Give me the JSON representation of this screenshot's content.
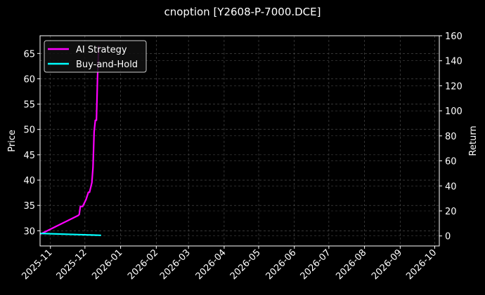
{
  "title": "cnoption [Y2608-P-7000.DCE]",
  "chart_data": {
    "type": "line",
    "title": "cnoption [Y2608-P-7000.DCE]",
    "xlabel": "",
    "ylabel": "Price",
    "ylabel_right": "Return",
    "x_ticks": [
      "2025-11",
      "2025-12",
      "2026-01",
      "2026-02",
      "2026-03",
      "2026-04",
      "2026-05",
      "2026-06",
      "2026-07",
      "2026-08",
      "2026-09",
      "2026-10"
    ],
    "y_ticks_left": [
      30,
      35,
      40,
      45,
      50,
      55,
      60,
      65
    ],
    "y_ticks_right": [
      0,
      20,
      40,
      60,
      80,
      100,
      120,
      140,
      160
    ],
    "ylim_left": [
      27.0,
      68.5
    ],
    "ylim_right": [
      -8,
      160
    ],
    "grid": true,
    "legend_position": "upper left",
    "series": [
      {
        "name": "AI Strategy",
        "color": "#ff00ff",
        "axis": "left",
        "x": [
          "2025-10-23",
          "2025-11-25",
          "2025-11-26",
          "2025-11-27",
          "2025-11-29",
          "2025-12-02",
          "2025-12-04",
          "2025-12-05",
          "2025-12-07",
          "2025-12-08",
          "2025-12-09",
          "2025-12-10",
          "2025-12-11",
          "2025-12-12",
          "2025-12-13"
        ],
        "values": [
          29.3,
          33.0,
          33.2,
          34.8,
          34.8,
          36.2,
          37.6,
          37.6,
          39.5,
          42.5,
          49.5,
          51.8,
          51.8,
          60.5,
          66.5
        ]
      },
      {
        "name": "Buy-and-Hold",
        "color": "#00ffff",
        "axis": "right",
        "x": [
          "2025-10-23",
          "2025-12-15"
        ],
        "values": [
          2.0,
          0.5
        ]
      }
    ]
  },
  "legend": {
    "items": [
      {
        "label": "AI Strategy",
        "color": "#ff00ff"
      },
      {
        "label": "Buy-and-Hold",
        "color": "#00ffff"
      }
    ]
  }
}
